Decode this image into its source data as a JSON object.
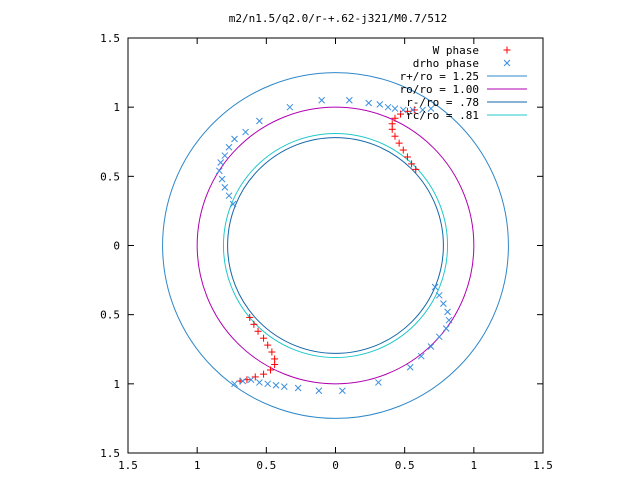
{
  "chart_data": {
    "type": "scatter",
    "title": "m2/n1.5/q2.0/r-+.62-j321/M0.7/512",
    "xlim": [
      -1.5,
      1.5
    ],
    "ylim": [
      -1.5,
      1.5
    ],
    "x_ticks": [
      -1.5,
      -1,
      -0.5,
      0,
      0.5,
      1,
      1.5
    ],
    "y_ticks": [
      -1.5,
      -1,
      -0.5,
      0,
      0.5,
      1,
      1.5
    ],
    "x_tick_labels": [
      "1.5",
      "1",
      "0.5",
      "0",
      "0.5",
      "1",
      "1.5"
    ],
    "y_tick_labels": [
      "1.5",
      "1",
      "0.5",
      "0",
      "0.5",
      "1",
      "1.5"
    ],
    "grid": false,
    "legend_position": "top-right",
    "legend": [
      {
        "label": "W phase",
        "color": "#ff0000",
        "marker": "plus"
      },
      {
        "label": "drho phase",
        "color": "#3b8fe0",
        "marker": "cross"
      },
      {
        "label": "r+/ro = 1.25",
        "color": "#2f87c8",
        "marker": "line"
      },
      {
        "label": "ro/ro = 1.00",
        "color": "#b000b0",
        "marker": "line"
      },
      {
        "label": "r-/ro = .78",
        "color": "#1565a8",
        "marker": "line"
      },
      {
        "label": "rc/ro = .81",
        "color": "#22c8c8",
        "marker": "line"
      }
    ],
    "circles": [
      {
        "name": "r+/ro = 1.25",
        "r": 1.25,
        "color": "#2f87c8"
      },
      {
        "name": "ro/ro = 1.00",
        "r": 1.0,
        "color": "#b000b0"
      },
      {
        "name": "r-/ro = .78",
        "r": 0.78,
        "color": "#1565a8"
      },
      {
        "name": "rc/ro = .81",
        "r": 0.81,
        "color": "#22c8c8"
      }
    ],
    "series": [
      {
        "name": "W phase",
        "color": "#ff0000",
        "marker": "plus",
        "points": [
          [
            0.58,
            0.55
          ],
          [
            0.55,
            0.59
          ],
          [
            0.52,
            0.64
          ],
          [
            0.49,
            0.69
          ],
          [
            0.46,
            0.74
          ],
          [
            0.43,
            0.79
          ],
          [
            0.41,
            0.84
          ],
          [
            0.41,
            0.88
          ],
          [
            0.43,
            0.92
          ],
          [
            0.47,
            0.95
          ],
          [
            0.52,
            0.97
          ],
          [
            0.57,
            0.98
          ],
          [
            -0.62,
            -0.52
          ],
          [
            -0.59,
            -0.57
          ],
          [
            -0.56,
            -0.62
          ],
          [
            -0.52,
            -0.67
          ],
          [
            -0.49,
            -0.72
          ],
          [
            -0.46,
            -0.77
          ],
          [
            -0.44,
            -0.82
          ],
          [
            -0.44,
            -0.86
          ],
          [
            -0.47,
            -0.9
          ],
          [
            -0.52,
            -0.93
          ],
          [
            -0.58,
            -0.95
          ],
          [
            -0.64,
            -0.97
          ],
          [
            -0.69,
            -0.98
          ]
        ]
      },
      {
        "name": "drho phase",
        "color": "#3b8fe0",
        "marker": "cross",
        "points": [
          [
            0.72,
            -0.3
          ],
          [
            0.75,
            -0.36
          ],
          [
            0.78,
            -0.42
          ],
          [
            0.81,
            -0.48
          ],
          [
            0.82,
            -0.54
          ],
          [
            0.8,
            -0.6
          ],
          [
            0.75,
            -0.66
          ],
          [
            0.69,
            -0.73
          ],
          [
            0.62,
            -0.8
          ],
          [
            0.54,
            -0.88
          ],
          [
            0.31,
            -0.99
          ],
          [
            0.05,
            -1.05
          ],
          [
            -0.12,
            -1.05
          ],
          [
            -0.27,
            -1.03
          ],
          [
            -0.37,
            -1.02
          ],
          [
            -0.43,
            -1.01
          ],
          [
            -0.49,
            -1.0
          ],
          [
            -0.55,
            -0.99
          ],
          [
            -0.61,
            -0.97
          ],
          [
            -0.67,
            -0.98
          ],
          [
            -0.73,
            -1.0
          ],
          [
            -0.74,
            0.3
          ],
          [
            -0.77,
            0.36
          ],
          [
            -0.8,
            0.42
          ],
          [
            -0.82,
            0.48
          ],
          [
            -0.84,
            0.54
          ],
          [
            -0.83,
            0.6
          ],
          [
            -0.8,
            0.65
          ],
          [
            -0.77,
            0.71
          ],
          [
            -0.73,
            0.77
          ],
          [
            -0.65,
            0.82
          ],
          [
            -0.55,
            0.9
          ],
          [
            -0.33,
            1.0
          ],
          [
            -0.1,
            1.05
          ],
          [
            0.1,
            1.05
          ],
          [
            0.24,
            1.03
          ],
          [
            0.32,
            1.02
          ],
          [
            0.38,
            1.0
          ],
          [
            0.43,
            0.99
          ],
          [
            0.49,
            0.98
          ],
          [
            0.56,
            0.98
          ],
          [
            0.63,
            0.98
          ],
          [
            0.69,
            0.99
          ]
        ]
      }
    ]
  }
}
